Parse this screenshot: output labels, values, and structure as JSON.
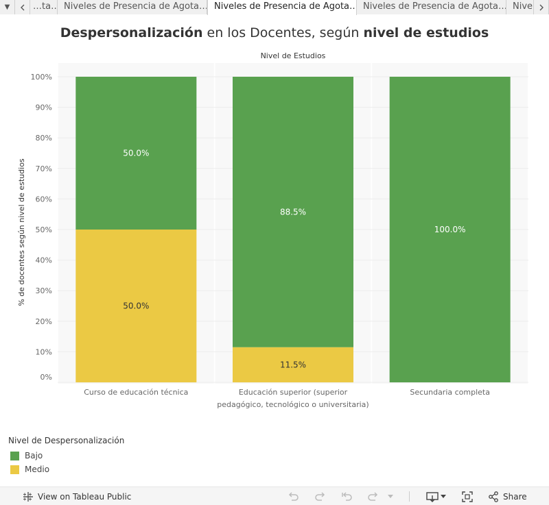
{
  "tabs": {
    "prev_truncated": "…ta…",
    "items": [
      {
        "label": "Niveles de Presencia de Agota…",
        "active": false
      },
      {
        "label": "Niveles de Presencia de Agota…",
        "active": true
      },
      {
        "label": "Niveles de Presencia de Agota…",
        "active": false
      },
      {
        "label": "Nive…",
        "active": false
      }
    ]
  },
  "title": {
    "part1": "Despersonalización",
    "part2": " en los Docentes, según ",
    "part3": "nivel de estudios"
  },
  "chart_data": {
    "type": "bar",
    "stacked": true,
    "normalized_percent": true,
    "column_header": "Nivel de Estudios",
    "ylabel": "% de docentes según nivel de estudios",
    "yticks": [
      "0%",
      "10%",
      "20%",
      "30%",
      "40%",
      "50%",
      "60%",
      "70%",
      "80%",
      "90%",
      "100%"
    ],
    "ylim": [
      0,
      100
    ],
    "categories": [
      [
        "Curso de educación técnica"
      ],
      [
        "Educación superior (superior",
        "pedagógico, tecnológico o universitaria)"
      ],
      [
        "Secundaria completa"
      ]
    ],
    "series": [
      {
        "name": "Medio",
        "color": "#ebc944",
        "values": [
          50.0,
          11.5,
          0.0
        ],
        "labels": [
          "50.0%",
          "11.5%",
          ""
        ]
      },
      {
        "name": "Bajo",
        "color": "#59a14f",
        "values": [
          50.0,
          88.5,
          100.0
        ],
        "labels": [
          "50.0%",
          "88.5%",
          "100.0%"
        ]
      }
    ]
  },
  "legend": {
    "title": "Nivel de Despersonalización",
    "items": [
      {
        "label": "Bajo",
        "color": "#59a14f"
      },
      {
        "label": "Medio",
        "color": "#ebc944"
      }
    ]
  },
  "toolbar": {
    "view_label": "View on Tableau Public",
    "share_label": "Share"
  }
}
